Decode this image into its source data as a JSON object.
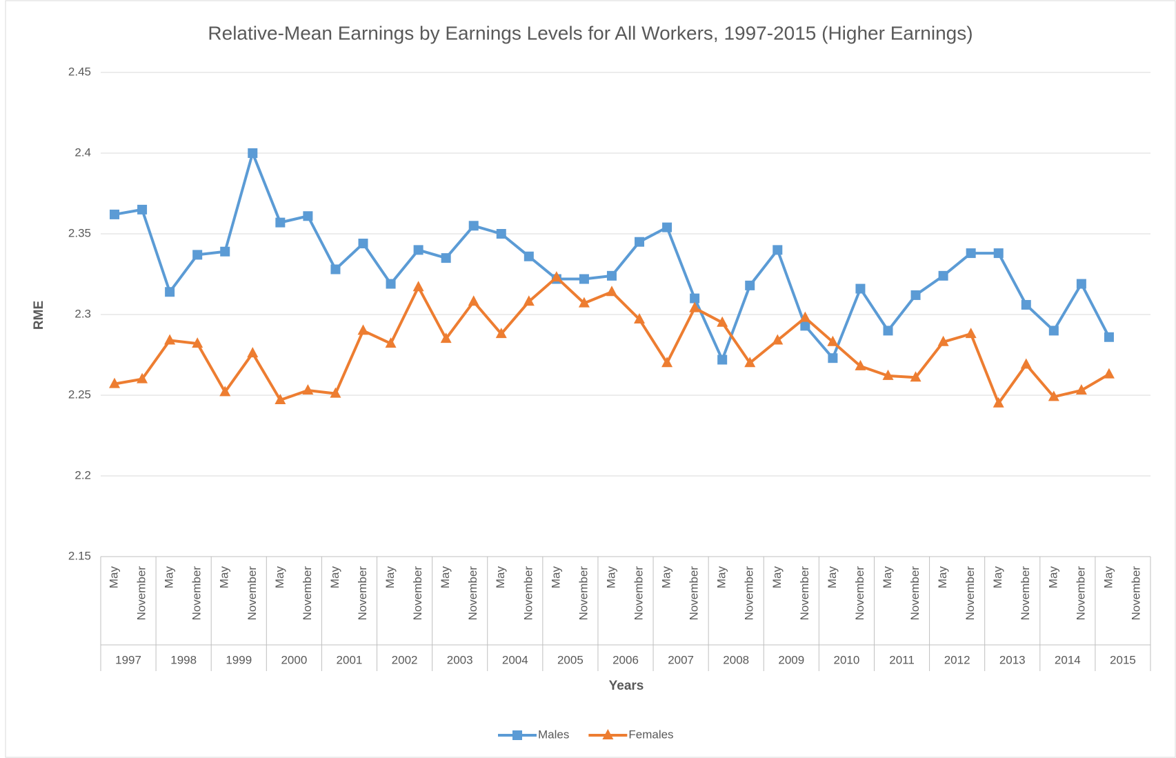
{
  "chart_data": {
    "type": "line",
    "title": "Relative-Mean Earnings by Earnings Levels for All Workers, 1997-2015 (Higher Earnings)",
    "x_label": "Years",
    "y_label": "RME",
    "categories": [
      "May",
      "November",
      "May",
      "November",
      "May",
      "November",
      "May",
      "November",
      "May",
      "November",
      "May",
      "November",
      "May",
      "November",
      "May",
      "November",
      "May",
      "November",
      "May",
      "November",
      "May",
      "November",
      "May",
      "November",
      "May",
      "November",
      "May",
      "November",
      "May",
      "November",
      "May",
      "November",
      "May",
      "November",
      "May",
      "November",
      "May",
      "November"
    ],
    "category_groups": [
      "1997",
      "1998",
      "1999",
      "2000",
      "2001",
      "2002",
      "2003",
      "2004",
      "2005",
      "2006",
      "2007",
      "2008",
      "2009",
      "2010",
      "2011",
      "2012",
      "2013",
      "2014",
      "2015"
    ],
    "series": [
      {
        "name": "Males",
        "color": "#5b9bd5",
        "marker": "square",
        "values": [
          2.362,
          2.365,
          2.314,
          2.337,
          2.339,
          2.4,
          2.357,
          2.361,
          2.328,
          2.344,
          2.319,
          2.34,
          2.335,
          2.355,
          2.35,
          2.336,
          2.322,
          2.322,
          2.324,
          2.345,
          2.354,
          2.31,
          2.272,
          2.318,
          2.34,
          2.293,
          2.273,
          2.316,
          2.29,
          2.312,
          2.324,
          2.338,
          2.338,
          2.306,
          2.29,
          2.319,
          2.286,
          null
        ]
      },
      {
        "name": "Females",
        "color": "#ed7d31",
        "marker": "triangle",
        "values": [
          2.257,
          2.26,
          2.284,
          2.282,
          2.252,
          2.276,
          2.247,
          2.253,
          2.251,
          2.29,
          2.282,
          2.317,
          2.285,
          2.308,
          2.288,
          2.308,
          2.323,
          2.307,
          2.314,
          2.297,
          2.27,
          2.304,
          2.295,
          2.27,
          2.284,
          2.298,
          2.283,
          2.268,
          2.262,
          2.261,
          2.283,
          2.288,
          2.245,
          2.269,
          2.249,
          2.253,
          2.263,
          null
        ]
      }
    ],
    "ylim": [
      2.15,
      2.45
    ],
    "yticks": [
      2.15,
      2.2,
      2.25,
      2.3,
      2.35,
      2.4,
      2.45
    ],
    "grid": true,
    "legend": "bottom"
  }
}
